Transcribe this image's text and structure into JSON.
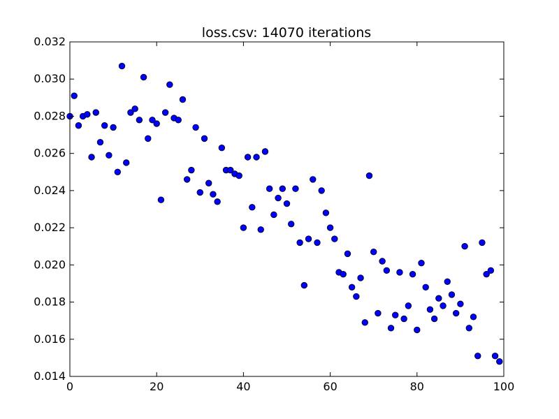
{
  "chart_data": {
    "type": "scatter",
    "title": "loss.csv: 14070 iterations",
    "xlabel": "",
    "ylabel": "",
    "xlim": [
      0,
      100
    ],
    "ylim": [
      0.014,
      0.032
    ],
    "x_ticks": [
      "0",
      "20",
      "40",
      "60",
      "80",
      "100"
    ],
    "y_ticks": [
      "0.014",
      "0.016",
      "0.018",
      "0.020",
      "0.022",
      "0.024",
      "0.026",
      "0.028",
      "0.030",
      "0.032"
    ],
    "grid": false,
    "legend": "none",
    "marker_color": "#0000ff",
    "series": [
      {
        "x": [
          0,
          1,
          2,
          3,
          4,
          5,
          6,
          7,
          8,
          9,
          10,
          11,
          12,
          13,
          14,
          15,
          16,
          17,
          18,
          19,
          20,
          21,
          22,
          23,
          24,
          25,
          26,
          27,
          28,
          29,
          30,
          31,
          32,
          33,
          34,
          35,
          36,
          37,
          38,
          39,
          40,
          41,
          42,
          43,
          44,
          45,
          46,
          47,
          48,
          49,
          50,
          51,
          52,
          53,
          54,
          55,
          56,
          57,
          58,
          59,
          60,
          61,
          62,
          63,
          64,
          65,
          66,
          67,
          68,
          69,
          70,
          71,
          72,
          73,
          74,
          75,
          76,
          77,
          78,
          79,
          80,
          81,
          82,
          83,
          84,
          85,
          86,
          87,
          88,
          89,
          90,
          91,
          92,
          93,
          94,
          95,
          96,
          97,
          98,
          99
        ],
        "y": [
          0.028,
          0.0291,
          0.0275,
          0.028,
          0.0281,
          0.0258,
          0.0282,
          0.0266,
          0.0275,
          0.0259,
          0.0274,
          0.025,
          0.0307,
          0.0255,
          0.0282,
          0.0284,
          0.0278,
          0.0301,
          0.0268,
          0.0278,
          0.0276,
          0.0235,
          0.0282,
          0.0297,
          0.0279,
          0.0278,
          0.0289,
          0.0246,
          0.0251,
          0.0274,
          0.0239,
          0.0268,
          0.0244,
          0.0238,
          0.0234,
          0.0263,
          0.0251,
          0.0251,
          0.0249,
          0.0248,
          0.022,
          0.0258,
          0.0231,
          0.0258,
          0.0219,
          0.0261,
          0.0241,
          0.0227,
          0.0236,
          0.0241,
          0.0233,
          0.0222,
          0.0241,
          0.0212,
          0.0189,
          0.0214,
          0.0246,
          0.0212,
          0.024,
          0.0228,
          0.022,
          0.0214,
          0.0196,
          0.0195,
          0.0206,
          0.0188,
          0.0183,
          0.0193,
          0.0169,
          0.0248,
          0.0207,
          0.0174,
          0.0202,
          0.0197,
          0.0166,
          0.0173,
          0.0196,
          0.0171,
          0.0178,
          0.0195,
          0.0165,
          0.0201,
          0.0188,
          0.0176,
          0.0171,
          0.0182,
          0.0178,
          0.0191,
          0.0184,
          0.0174,
          0.0179,
          0.021,
          0.0166,
          0.0172,
          0.0151,
          0.0212,
          0.0195,
          0.0197,
          0.0151,
          0.0148
        ]
      }
    ]
  }
}
